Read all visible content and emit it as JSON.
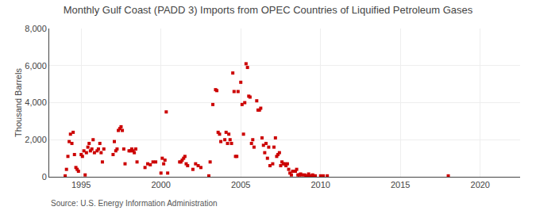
{
  "chart_data": {
    "type": "scatter",
    "title": "Monthly Gulf Coast (PADD 3) Imports from OPEC Countries of Liquified Petroleum Gases",
    "ylabel": "Thousand Barrels",
    "annotations": [
      "Source: U.S. Energy Information Administration"
    ],
    "color": "#cc0000",
    "marker": "square",
    "grid": true,
    "xlim": [
      1993.0,
      2022.5
    ],
    "ylim": [
      0,
      8000
    ],
    "xticks": [
      1995,
      2000,
      2005,
      2010,
      2015,
      2020
    ],
    "yticks": [
      0,
      {
        "value": 2000,
        "label": "2,000"
      },
      {
        "value": 4000,
        "label": "4,000"
      },
      {
        "value": 6000,
        "label": "6,000"
      },
      {
        "value": 8000,
        "label": "8,000"
      }
    ],
    "x": [
      1994.0,
      1994.08,
      1994.17,
      1994.25,
      1994.33,
      1994.42,
      1994.5,
      1994.58,
      1994.67,
      1994.75,
      1994.83,
      1995.0,
      1995.08,
      1995.17,
      1995.25,
      1995.33,
      1995.42,
      1995.5,
      1995.58,
      1995.67,
      1995.75,
      1995.83,
      1996.0,
      1996.08,
      1996.17,
      1996.25,
      1996.33,
      1996.42,
      1997.0,
      1997.08,
      1997.17,
      1997.25,
      1997.33,
      1997.42,
      1997.5,
      1997.58,
      1997.67,
      1997.75,
      1998.0,
      1998.08,
      1998.17,
      1998.25,
      1998.33,
      1998.42,
      1998.5,
      1999.0,
      1999.17,
      1999.33,
      1999.5,
      1999.67,
      2000.0,
      2000.08,
      2000.17,
      2000.25,
      2000.33,
      2000.42,
      2001.17,
      2001.25,
      2001.33,
      2001.42,
      2001.5,
      2001.58,
      2001.67,
      2002.0,
      2002.17,
      2002.33,
      2002.5,
      2003.0,
      2003.08,
      2003.25,
      2003.42,
      2003.5,
      2003.58,
      2003.67,
      2003.75,
      2004.0,
      2004.08,
      2004.17,
      2004.25,
      2004.33,
      2004.42,
      2004.5,
      2004.58,
      2004.67,
      2004.75,
      2004.83,
      2005.0,
      2005.08,
      2005.17,
      2005.25,
      2005.33,
      2005.42,
      2005.5,
      2005.58,
      2005.67,
      2005.75,
      2005.83,
      2006.0,
      2006.08,
      2006.17,
      2006.25,
      2006.33,
      2006.42,
      2006.5,
      2006.58,
      2006.67,
      2006.75,
      2006.83,
      2007.0,
      2007.08,
      2007.17,
      2007.25,
      2007.33,
      2007.42,
      2007.5,
      2007.58,
      2007.67,
      2007.75,
      2007.83,
      2007.92,
      2008.0,
      2008.08,
      2008.17,
      2008.25,
      2008.33,
      2008.42,
      2008.5,
      2008.58,
      2008.67,
      2008.75,
      2008.83,
      2009.0,
      2009.08,
      2009.17,
      2009.25,
      2009.33,
      2009.42,
      2009.5,
      2009.58,
      2009.67,
      2010.0,
      2010.17,
      2010.42,
      2018.0
    ],
    "values": [
      50,
      400,
      1100,
      1900,
      2300,
      1800,
      2400,
      1200,
      500,
      400,
      300,
      1200,
      1100,
      1400,
      100,
      1300,
      1600,
      1800,
      1400,
      1500,
      2000,
      1300,
      1400,
      1500,
      1800,
      1300,
      800,
      1500,
      1200,
      1900,
      1400,
      1500,
      2500,
      2600,
      2700,
      2500,
      1500,
      700,
      1400,
      1400,
      1500,
      1400,
      1300,
      1500,
      800,
      500,
      700,
      650,
      800,
      800,
      200,
      1000,
      700,
      900,
      3500,
      200,
      800,
      800,
      900,
      1000,
      1100,
      700,
      600,
      400,
      700,
      600,
      500,
      50,
      800,
      3900,
      4700,
      4650,
      2400,
      2300,
      1900,
      2000,
      2400,
      1800,
      2300,
      2000,
      1800,
      5600,
      4600,
      1100,
      1100,
      4600,
      5100,
      3900,
      2300,
      4000,
      6100,
      5900,
      4350,
      4300,
      1800,
      2000,
      1600,
      4100,
      3600,
      3600,
      3700,
      2100,
      1700,
      1300,
      1800,
      1000,
      1600,
      600,
      700,
      1600,
      2100,
      1100,
      1200,
      1300,
      600,
      800,
      700,
      700,
      600,
      700,
      400,
      200,
      100,
      300,
      300,
      300,
      400,
      100,
      100,
      150,
      100,
      100,
      50,
      50,
      150,
      50,
      50,
      100,
      50,
      50,
      50,
      50,
      50,
      50
    ]
  }
}
